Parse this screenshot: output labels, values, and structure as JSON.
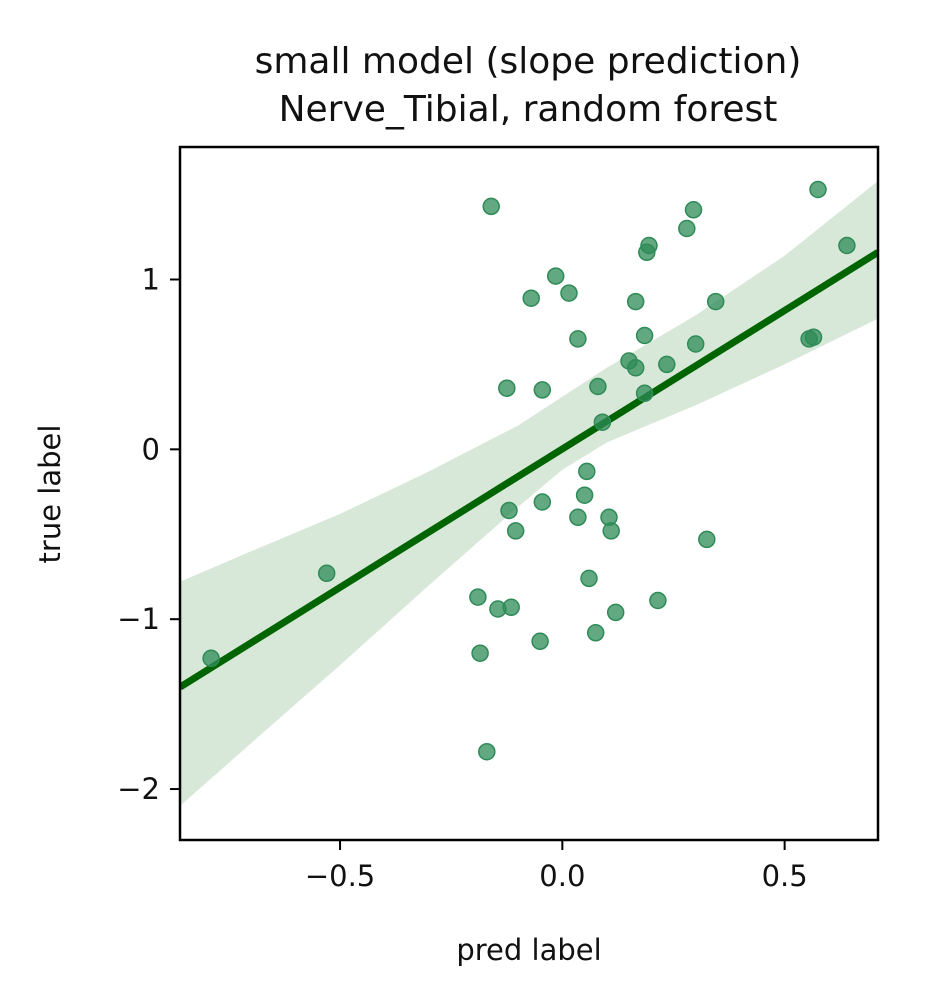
{
  "chart_data": {
    "type": "scatter",
    "title": "small model (slope prediction)",
    "subtitle": "Nerve_Tibial, random forest",
    "xlabel": "pred label",
    "ylabel": "true label",
    "xlim": [
      -0.86,
      0.71
    ],
    "ylim": [
      -2.3,
      1.78
    ],
    "xticks": [
      -0.5,
      0.0,
      0.5
    ],
    "xtick_labels": [
      "−0.5",
      "0.0",
      "0.5"
    ],
    "yticks": [
      -2,
      -1,
      0,
      1
    ],
    "ytick_labels": [
      "−2",
      "−1",
      "0",
      "1"
    ],
    "grid": false,
    "colors": {
      "points": "#2e8b57",
      "regression_line": "#006400",
      "confidence_band": "#d8e8d8",
      "axes": "#000000"
    },
    "series": [
      {
        "points": [
          {
            "x": -0.79,
            "y": -1.23
          },
          {
            "x": -0.53,
            "y": -0.73
          },
          {
            "x": -0.16,
            "y": 1.43
          },
          {
            "x": -0.19,
            "y": -0.87
          },
          {
            "x": -0.185,
            "y": -1.2
          },
          {
            "x": -0.17,
            "y": -1.78
          },
          {
            "x": -0.145,
            "y": -0.94
          },
          {
            "x": -0.125,
            "y": 0.36
          },
          {
            "x": -0.12,
            "y": -0.36
          },
          {
            "x": -0.115,
            "y": -0.93
          },
          {
            "x": -0.105,
            "y": -0.48
          },
          {
            "x": -0.07,
            "y": 0.89
          },
          {
            "x": -0.045,
            "y": 0.35
          },
          {
            "x": -0.045,
            "y": -0.31
          },
          {
            "x": -0.05,
            "y": -1.13
          },
          {
            "x": -0.015,
            "y": 1.02
          },
          {
            "x": 0.015,
            "y": 0.92
          },
          {
            "x": 0.035,
            "y": 0.65
          },
          {
            "x": 0.035,
            "y": -0.4
          },
          {
            "x": 0.05,
            "y": -0.27
          },
          {
            "x": 0.055,
            "y": -0.13
          },
          {
            "x": 0.06,
            "y": -0.76
          },
          {
            "x": 0.075,
            "y": -1.08
          },
          {
            "x": 0.08,
            "y": 0.37
          },
          {
            "x": 0.09,
            "y": 0.16
          },
          {
            "x": 0.105,
            "y": -0.4
          },
          {
            "x": 0.11,
            "y": -0.48
          },
          {
            "x": 0.12,
            "y": -0.96
          },
          {
            "x": 0.15,
            "y": 0.52
          },
          {
            "x": 0.165,
            "y": 0.48
          },
          {
            "x": 0.165,
            "y": 0.87
          },
          {
            "x": 0.185,
            "y": 0.33
          },
          {
            "x": 0.185,
            "y": 0.67
          },
          {
            "x": 0.19,
            "y": 1.16
          },
          {
            "x": 0.195,
            "y": 1.2
          },
          {
            "x": 0.215,
            "y": -0.89
          },
          {
            "x": 0.235,
            "y": 0.5
          },
          {
            "x": 0.28,
            "y": 1.3
          },
          {
            "x": 0.295,
            "y": 1.41
          },
          {
            "x": 0.3,
            "y": 0.62
          },
          {
            "x": 0.325,
            "y": -0.53
          },
          {
            "x": 0.345,
            "y": 0.87
          },
          {
            "x": 0.555,
            "y": 0.65
          },
          {
            "x": 0.565,
            "y": 0.66
          },
          {
            "x": 0.575,
            "y": 1.53
          },
          {
            "x": 0.64,
            "y": 1.2
          }
        ]
      }
    ],
    "regression": {
      "x": [
        -0.86,
        0.71
      ],
      "y": [
        -1.4,
        1.16
      ]
    },
    "confidence_band": {
      "x": [
        -0.86,
        -0.7,
        -0.5,
        -0.3,
        -0.1,
        0.0,
        0.1,
        0.3,
        0.5,
        0.71
      ],
      "lower": [
        -2.1,
        -1.73,
        -1.27,
        -0.8,
        -0.34,
        -0.12,
        0.04,
        0.26,
        0.5,
        0.77
      ],
      "upper": [
        -0.78,
        -0.6,
        -0.38,
        -0.13,
        0.14,
        0.31,
        0.48,
        0.79,
        1.14,
        1.58
      ]
    }
  }
}
